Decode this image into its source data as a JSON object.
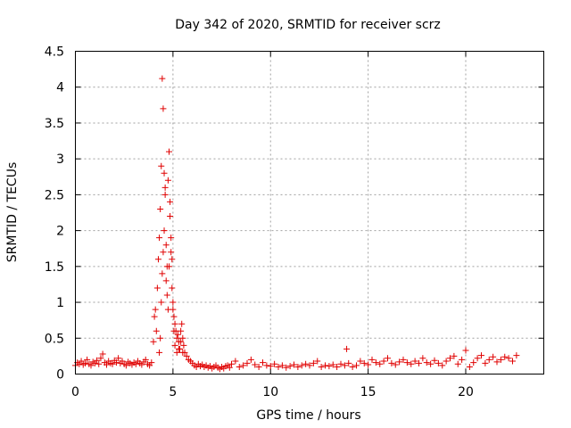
{
  "chart_data": {
    "type": "scatter",
    "title": "Day 342 of 2020, SRMTID for receiver scrz",
    "xlabel": "GPS time / hours",
    "ylabel": "SRMTID / TECUs",
    "xlim": [
      0,
      24
    ],
    "ylim": [
      0,
      4.5
    ],
    "xticks": [
      0,
      5,
      10,
      15,
      20
    ],
    "xtick_labels": [
      "0",
      "5",
      "10",
      "15",
      "20"
    ],
    "yticks": [
      0,
      0.5,
      1,
      1.5,
      2,
      2.5,
      3,
      3.5,
      4,
      4.5
    ],
    "ytick_labels": [
      "0",
      "0.5",
      "1",
      "1.5",
      "2",
      "2.5",
      "3",
      "3.5",
      "4",
      "4.5"
    ],
    "grid": true,
    "legend": false,
    "marker": "+",
    "color": "#e00000",
    "series": [
      {
        "x": [
          0.0,
          0.1,
          0.2,
          0.3,
          0.4,
          0.5,
          0.6,
          0.7,
          0.8,
          0.9,
          1.0,
          1.1,
          1.2,
          1.3,
          1.4,
          1.5,
          1.6,
          1.7,
          1.8,
          1.9,
          2.0,
          2.1,
          2.2,
          2.3,
          2.4,
          2.5,
          2.6,
          2.7,
          2.8,
          2.9,
          3.0,
          3.1,
          3.2,
          3.3,
          3.4,
          3.5,
          3.6,
          3.7,
          3.8,
          3.9,
          4.0,
          4.05,
          4.1,
          4.15,
          4.2,
          4.25,
          4.3,
          4.35,
          4.4,
          4.45,
          4.5,
          4.55,
          4.6,
          4.65,
          4.7,
          4.75,
          4.8,
          4.85,
          4.9,
          4.95,
          5.0,
          5.05,
          5.1,
          5.15,
          5.2,
          5.25,
          5.3,
          5.35,
          5.4,
          5.45,
          5.5,
          5.55,
          5.6,
          5.7,
          5.8,
          5.9,
          4.3,
          4.35,
          4.4,
          4.45,
          4.5,
          4.55,
          4.6,
          4.65,
          4.7,
          4.75,
          4.8,
          4.85,
          4.9,
          4.95,
          5.0,
          5.05,
          5.1,
          5.2,
          5.3,
          5.4,
          5.5,
          6.0,
          6.1,
          6.2,
          6.3,
          6.4,
          6.5,
          6.6,
          6.7,
          6.8,
          6.9,
          7.0,
          7.1,
          7.2,
          7.3,
          7.4,
          7.5,
          7.6,
          7.7,
          7.8,
          7.9,
          8.0,
          8.2,
          8.4,
          8.6,
          8.8,
          9.0,
          9.2,
          9.4,
          9.6,
          9.8,
          10.0,
          10.2,
          10.4,
          10.6,
          10.8,
          11.0,
          11.2,
          11.4,
          11.6,
          11.8,
          12.0,
          12.2,
          12.4,
          12.6,
          12.8,
          13.0,
          13.2,
          13.4,
          13.6,
          13.8,
          13.9,
          14.0,
          14.2,
          14.4,
          14.6,
          14.8,
          15.0,
          15.2,
          15.4,
          15.6,
          15.8,
          16.0,
          16.2,
          16.4,
          16.6,
          16.8,
          17.0,
          17.2,
          17.4,
          17.6,
          17.8,
          18.0,
          18.2,
          18.4,
          18.6,
          18.8,
          19.0,
          19.2,
          19.4,
          19.6,
          19.8,
          20.0,
          20.2,
          20.4,
          20.6,
          20.8,
          21.0,
          21.2,
          21.4,
          21.6,
          21.8,
          22.0,
          22.2,
          22.4,
          22.6
        ],
        "y": [
          0.12,
          0.16,
          0.14,
          0.18,
          0.13,
          0.15,
          0.2,
          0.14,
          0.12,
          0.17,
          0.15,
          0.19,
          0.14,
          0.22,
          0.28,
          0.16,
          0.13,
          0.18,
          0.15,
          0.14,
          0.19,
          0.16,
          0.22,
          0.15,
          0.18,
          0.14,
          0.12,
          0.17,
          0.15,
          0.13,
          0.16,
          0.14,
          0.18,
          0.15,
          0.13,
          0.17,
          0.2,
          0.14,
          0.12,
          0.16,
          0.45,
          0.8,
          0.9,
          0.6,
          1.2,
          1.6,
          1.9,
          2.3,
          2.9,
          4.12,
          3.7,
          2.8,
          2.5,
          1.8,
          1.5,
          2.7,
          3.1,
          2.2,
          1.9,
          1.6,
          1.0,
          0.8,
          0.7,
          0.6,
          0.5,
          0.55,
          0.45,
          0.35,
          0.6,
          0.7,
          0.5,
          0.4,
          0.3,
          0.25,
          0.2,
          0.18,
          0.3,
          0.5,
          1.0,
          1.4,
          1.7,
          2.0,
          2.6,
          1.3,
          1.1,
          0.9,
          1.5,
          2.4,
          1.7,
          1.2,
          0.9,
          0.6,
          0.4,
          0.3,
          0.35,
          0.45,
          0.3,
          0.15,
          0.12,
          0.1,
          0.14,
          0.11,
          0.13,
          0.1,
          0.12,
          0.09,
          0.11,
          0.08,
          0.1,
          0.12,
          0.09,
          0.07,
          0.1,
          0.08,
          0.11,
          0.12,
          0.09,
          0.14,
          0.18,
          0.1,
          0.12,
          0.15,
          0.2,
          0.13,
          0.1,
          0.16,
          0.12,
          0.11,
          0.14,
          0.1,
          0.12,
          0.09,
          0.11,
          0.13,
          0.1,
          0.12,
          0.14,
          0.12,
          0.15,
          0.18,
          0.1,
          0.12,
          0.11,
          0.13,
          0.1,
          0.14,
          0.12,
          0.35,
          0.15,
          0.1,
          0.12,
          0.18,
          0.15,
          0.13,
          0.2,
          0.16,
          0.14,
          0.18,
          0.22,
          0.15,
          0.13,
          0.17,
          0.2,
          0.16,
          0.14,
          0.18,
          0.15,
          0.22,
          0.16,
          0.14,
          0.19,
          0.15,
          0.12,
          0.18,
          0.22,
          0.25,
          0.14,
          0.2,
          0.33,
          0.1,
          0.16,
          0.22,
          0.26,
          0.15,
          0.2,
          0.24,
          0.17,
          0.2,
          0.24,
          0.22,
          0.18,
          0.26
        ]
      }
    ]
  }
}
